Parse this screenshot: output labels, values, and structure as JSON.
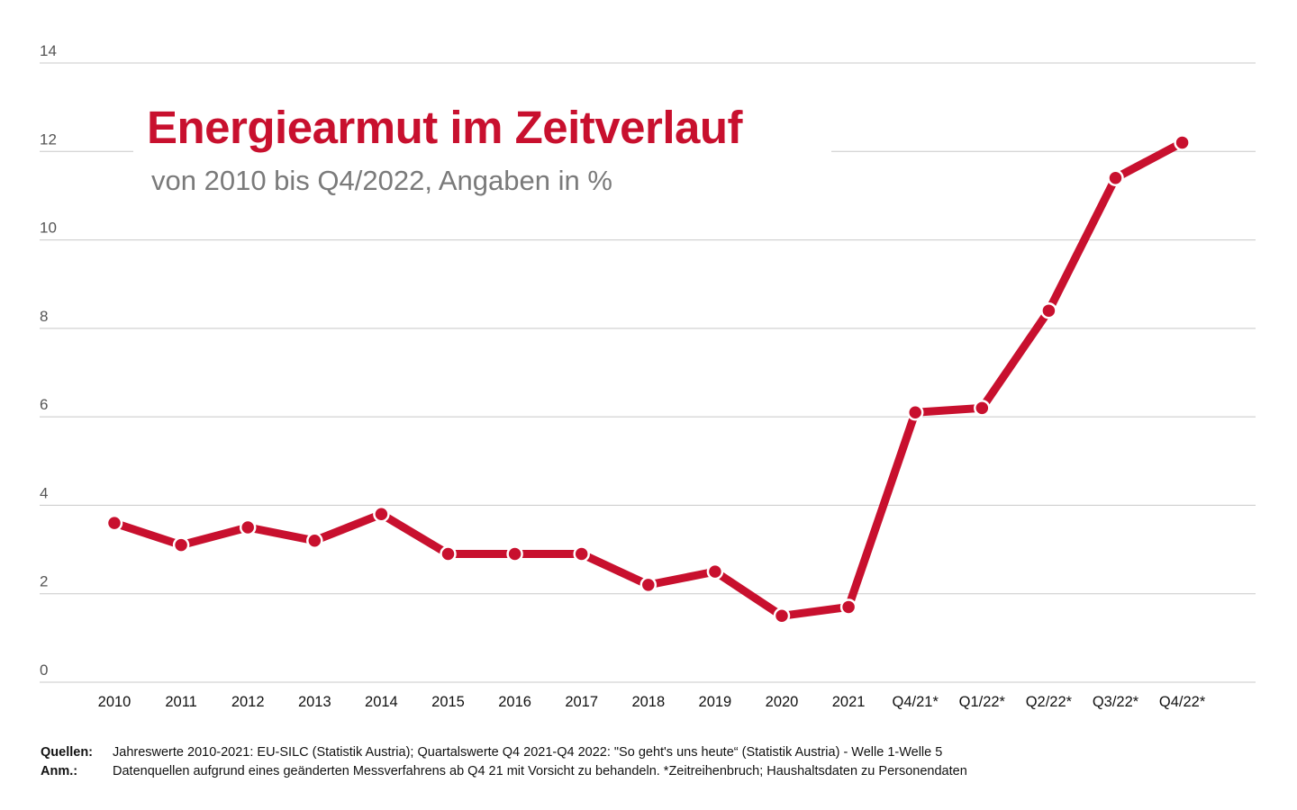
{
  "colors": {
    "line": "#c8102e",
    "title": "#c8102e",
    "subtitle": "#7a7a7a",
    "grid": "#c8c8c8",
    "axis_text": "#555555"
  },
  "title": "Energiearmut im Zeitverlauf",
  "subtitle": "von 2010 bis Q4/2022, Angaben in %",
  "notes": [
    {
      "label": "Quellen:",
      "text": "Jahreswerte 2010-2021: EU-SILC (Statistik Austria); Quartalswerte Q4 2021-Q4 2022: \"So geht's uns heute“ (Statistik Austria) - Welle 1-Welle 5"
    },
    {
      "label": "Anm.:",
      "text": "Datenquellen aufgrund eines geänderten Messverfahrens ab Q4 21 mit Vorsicht zu behandeln. *Zeitreihenbruch; Haushaltsdaten zu Personendaten"
    }
  ],
  "chart_data": {
    "type": "line",
    "title": "Energiearmut im Zeitverlauf",
    "subtitle": "von 2010 bis Q4/2022, Angaben in %",
    "xlabel": "",
    "ylabel": "",
    "ylim": [
      0,
      14
    ],
    "yticks": [
      0,
      2,
      4,
      6,
      8,
      10,
      12,
      14
    ],
    "grid": true,
    "categories": [
      "2010",
      "2011",
      "2012",
      "2013",
      "2014",
      "2015",
      "2016",
      "2017",
      "2018",
      "2019",
      "2020",
      "2021",
      "Q4/21*",
      "Q1/22*",
      "Q2/22*",
      "Q3/22*",
      "Q4/22*"
    ],
    "series": [
      {
        "values": [
          3.6,
          3.1,
          3.5,
          3.2,
          3.8,
          2.9,
          2.9,
          2.9,
          2.2,
          2.5,
          1.5,
          1.7,
          6.1,
          6.2,
          8.4,
          11.4,
          12.2
        ]
      }
    ]
  }
}
